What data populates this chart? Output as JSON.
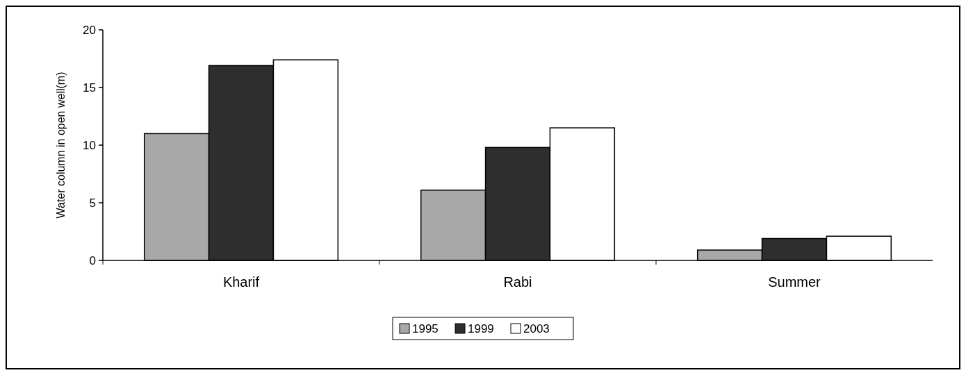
{
  "chart_data": {
    "type": "bar",
    "ylabel": "Water column in open well(m)",
    "categories": [
      "Kharif",
      "Rabi",
      "Summer"
    ],
    "series": [
      {
        "name": "1995",
        "color": "#a8a8a8",
        "values": [
          11,
          6.1,
          0.9
        ]
      },
      {
        "name": "1999",
        "color": "#2e2e2e",
        "values": [
          16.9,
          9.8,
          1.9
        ]
      },
      {
        "name": "2003",
        "color": "#ffffff",
        "values": [
          17.4,
          11.5,
          2.1
        ]
      }
    ],
    "ylim": [
      0,
      20
    ],
    "yticks": [
      0,
      5,
      10,
      15,
      20
    ],
    "legend": "bottom"
  }
}
